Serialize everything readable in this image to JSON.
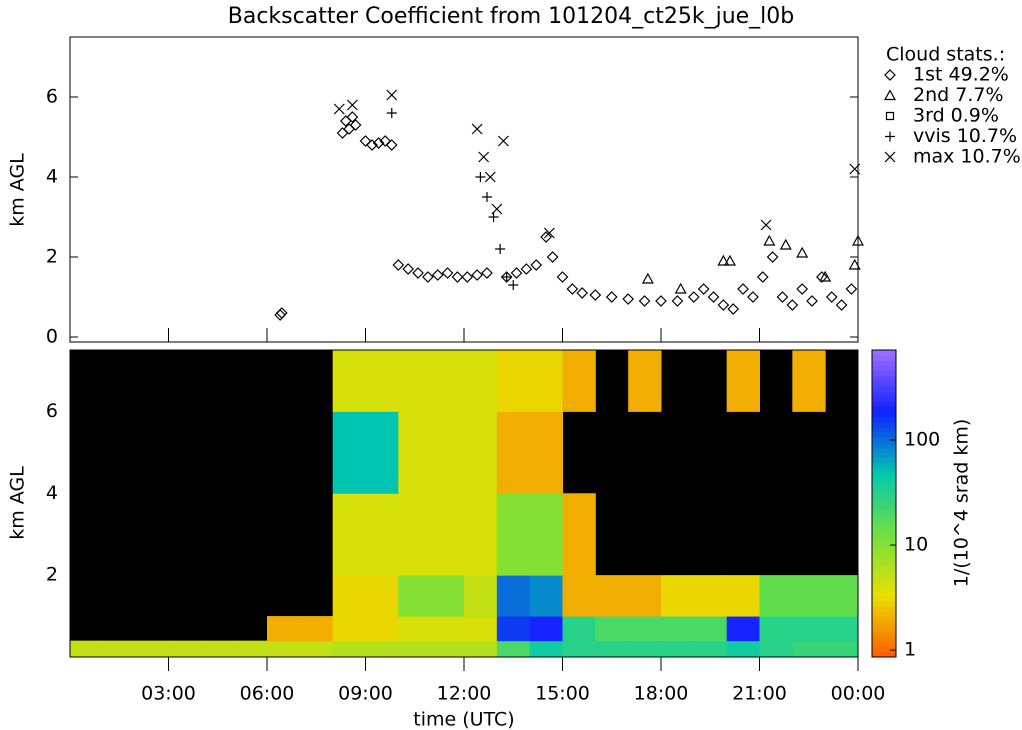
{
  "chart_data": [
    {
      "type": "scatter",
      "title": "Backscatter Coefficient from 101204_ct25k_jue_l0b",
      "y_label": "km AGL",
      "legend_title": "Cloud stats.:",
      "xlim": [
        0,
        24
      ],
      "ylim": [
        -0.125,
        7.5
      ],
      "yticks": [
        0,
        2,
        4,
        6
      ],
      "series": [
        {
          "name": "1st 49.2%",
          "marker": "diamond",
          "color": "#000000",
          "x": [
            6.4,
            6.45,
            8.3,
            8.4,
            8.5,
            8.6,
            8.7,
            9.0,
            9.2,
            9.4,
            9.6,
            9.8,
            10.0,
            10.3,
            10.6,
            10.9,
            11.2,
            11.5,
            11.8,
            12.1,
            12.4,
            12.7,
            13.3,
            13.6,
            13.9,
            14.2,
            14.5,
            14.7,
            15.0,
            15.3,
            15.6,
            16.0,
            16.5,
            17.0,
            17.5,
            18.0,
            18.5,
            19.0,
            19.3,
            19.6,
            19.9,
            20.2,
            20.5,
            20.8,
            21.1,
            21.4,
            21.7,
            22.0,
            22.3,
            22.6,
            22.9,
            23.2,
            23.5,
            23.8
          ],
          "values": [
            0.55,
            0.6,
            5.1,
            5.4,
            5.2,
            5.5,
            5.3,
            4.9,
            4.8,
            4.85,
            4.9,
            4.8,
            1.8,
            1.7,
            1.6,
            1.5,
            1.55,
            1.6,
            1.5,
            1.5,
            1.55,
            1.6,
            1.5,
            1.6,
            1.7,
            1.8,
            2.5,
            2.0,
            1.5,
            1.2,
            1.1,
            1.05,
            1.0,
            0.95,
            0.9,
            0.9,
            0.9,
            1.0,
            1.2,
            1.0,
            0.8,
            0.7,
            1.2,
            1.0,
            1.5,
            2.0,
            1.0,
            0.8,
            1.2,
            0.9,
            1.5,
            1.0,
            0.8,
            1.2
          ]
        },
        {
          "name": "2nd  7.7%",
          "marker": "triangle",
          "color": "#000000",
          "x": [
            17.6,
            18.6,
            19.9,
            20.1,
            21.3,
            21.8,
            22.3,
            23.0,
            23.9,
            24.0
          ],
          "values": [
            1.45,
            1.2,
            1.9,
            1.9,
            2.4,
            2.3,
            2.1,
            1.5,
            1.8,
            2.4
          ]
        },
        {
          "name": "3rd  0.9%",
          "marker": "square",
          "color": "#000000",
          "x": [],
          "values": []
        },
        {
          "name": "vvis 10.7%",
          "marker": "plus",
          "color": "#000000",
          "x": [
            9.8,
            12.5,
            12.7,
            12.9,
            13.1,
            13.3,
            13.5
          ],
          "values": [
            5.6,
            4.0,
            3.5,
            3.0,
            2.2,
            1.5,
            1.3
          ]
        },
        {
          "name": "max 10.7%",
          "marker": "cross",
          "color": "#000000",
          "x": [
            8.2,
            8.6,
            9.8,
            12.4,
            12.6,
            12.8,
            13.0,
            13.2,
            14.6,
            21.2,
            23.9
          ],
          "values": [
            5.7,
            5.8,
            6.05,
            5.2,
            4.5,
            4.0,
            3.2,
            4.9,
            2.6,
            2.8,
            4.2
          ]
        }
      ]
    },
    {
      "type": "heatmap",
      "y_label": "km AGL",
      "x_label": "time (UTC)",
      "colorbar_label": "1/(10^4 srad km)",
      "xlim": [
        0,
        24
      ],
      "ylim": [
        0,
        7.5
      ],
      "yticks": [
        2,
        4,
        6
      ],
      "xticks": [
        {
          "value": 3,
          "label": "03:00"
        },
        {
          "value": 6,
          "label": "06:00"
        },
        {
          "value": 9,
          "label": "09:00"
        },
        {
          "value": 12,
          "label": "12:00"
        },
        {
          "value": 15,
          "label": "15:00"
        },
        {
          "value": 18,
          "label": "18:00"
        },
        {
          "value": 21,
          "label": "21:00"
        },
        {
          "value": 24,
          "label": "00:00"
        }
      ],
      "clim": [
        0.86,
        720
      ],
      "cticks": [
        1,
        10,
        100
      ],
      "log_color": true,
      "colormap": [
        "#ff5a00",
        "#e8e000",
        "#70e040",
        "#00c8b0",
        "#1020ff",
        "#a070ff"
      ],
      "x_edges": [
        0,
        1,
        2,
        3,
        4,
        5,
        6,
        7,
        8,
        9,
        10,
        11,
        12,
        13,
        14,
        15,
        16,
        17,
        18,
        19,
        20,
        21,
        22,
        23,
        24
      ],
      "y_edges": [
        0,
        0.4,
        1,
        2,
        4,
        6,
        7.5
      ],
      "values": [
        [
          5,
          5,
          5,
          5,
          5,
          5,
          5,
          5,
          6,
          6,
          6,
          6,
          6,
          20,
          40,
          30,
          30,
          30,
          30,
          30,
          40,
          30,
          25,
          25
        ],
        [
          null,
          null,
          null,
          null,
          null,
          null,
          2,
          2,
          3,
          3,
          4,
          4,
          4,
          150,
          200,
          30,
          20,
          20,
          20,
          20,
          200,
          30,
          30,
          30
        ],
        [
          null,
          null,
          null,
          null,
          null,
          null,
          null,
          null,
          3,
          3,
          10,
          10,
          5,
          100,
          80,
          2,
          2,
          2,
          3,
          3,
          3,
          15,
          15,
          15
        ],
        [
          null,
          null,
          null,
          null,
          null,
          null,
          null,
          null,
          4,
          4,
          4,
          4,
          4,
          10,
          10,
          2,
          null,
          null,
          null,
          null,
          null,
          null,
          null,
          null
        ],
        [
          null,
          null,
          null,
          null,
          null,
          null,
          null,
          null,
          50,
          50,
          4,
          4,
          4,
          2,
          2,
          null,
          null,
          null,
          null,
          null,
          null,
          null,
          null,
          null
        ],
        [
          null,
          null,
          null,
          null,
          null,
          null,
          null,
          null,
          4,
          4,
          4,
          4,
          4,
          3,
          3,
          2,
          null,
          2,
          null,
          null,
          2,
          null,
          2,
          null
        ]
      ]
    }
  ]
}
